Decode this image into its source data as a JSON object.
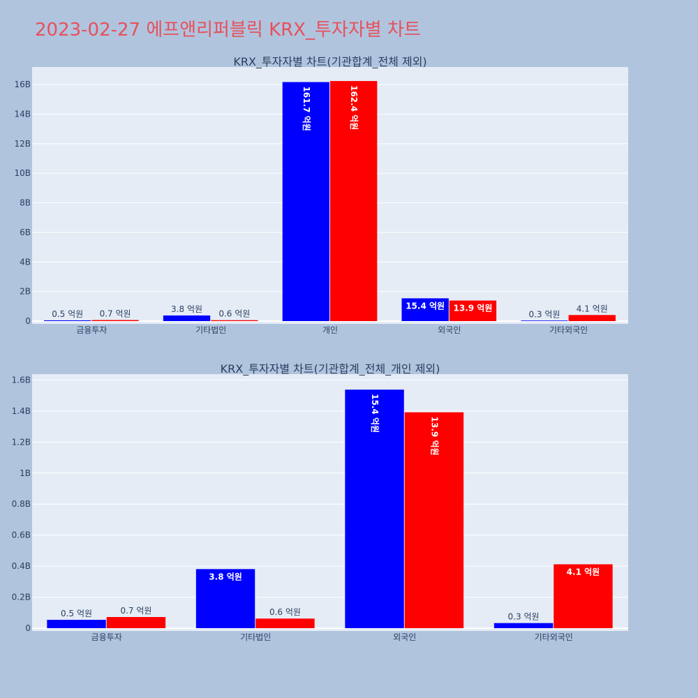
{
  "page_title": "2023-02-27 에프앤리퍼블릭 KRX_투자자별 차트",
  "colors": {
    "series_a": "#0000ff",
    "series_b": "#ff0000",
    "plot_bg": "#e5ecf6",
    "page_bg": "#b0c4de",
    "title": "#e8505b"
  },
  "chart_data": [
    {
      "type": "bar",
      "title": "KRX_투자자별 차트(기관합계_전체 제외)",
      "categories": [
        "금융투자",
        "기타법인",
        "개인",
        "외국인",
        "기타외국인"
      ],
      "series": [
        {
          "values": [
            0.05,
            0.38,
            16.17,
            1.54,
            0.03
          ],
          "labels": [
            "0.5 억원",
            "3.8 억원",
            "161.7 억원",
            "15.4 억원",
            "0.3 억원"
          ]
        },
        {
          "values": [
            0.07,
            0.06,
            16.24,
            1.39,
            0.41
          ],
          "labels": [
            "0.7 억원",
            "0.6 억원",
            "162.4 억원",
            "13.9 억원",
            "4.1 억원"
          ]
        }
      ],
      "ylim": [
        0,
        17.0
      ],
      "yticks": [
        0,
        2,
        4,
        6,
        8,
        10,
        12,
        14,
        16
      ],
      "ytick_labels": [
        "0",
        "2B",
        "4B",
        "6B",
        "8B",
        "10B",
        "12B",
        "14B",
        "16B"
      ],
      "grid": true,
      "legend": "none"
    },
    {
      "type": "bar",
      "title": "KRX_투자자별 차트(기관합계_전체_개인 제외)",
      "categories": [
        "금융투자",
        "기타법인",
        "외국인",
        "기타외국인"
      ],
      "series": [
        {
          "values": [
            0.054,
            0.381,
            1.538,
            0.033
          ],
          "labels": [
            "0.5 억원",
            "3.8 억원",
            "15.4 억원",
            "0.3 억원"
          ]
        },
        {
          "values": [
            0.072,
            0.062,
            1.392,
            0.412
          ],
          "labels": [
            "0.7 억원",
            "0.6 억원",
            "13.9 억원",
            "4.1 억원"
          ]
        }
      ],
      "ylim": [
        0,
        1.62
      ],
      "yticks": [
        0,
        0.2,
        0.4,
        0.6,
        0.8,
        1.0,
        1.2,
        1.4,
        1.6
      ],
      "ytick_labels": [
        "0",
        "0.2B",
        "0.4B",
        "0.6B",
        "0.8B",
        "1B",
        "1.2B",
        "1.4B",
        "1.6B"
      ],
      "grid": true,
      "legend": "none"
    }
  ]
}
